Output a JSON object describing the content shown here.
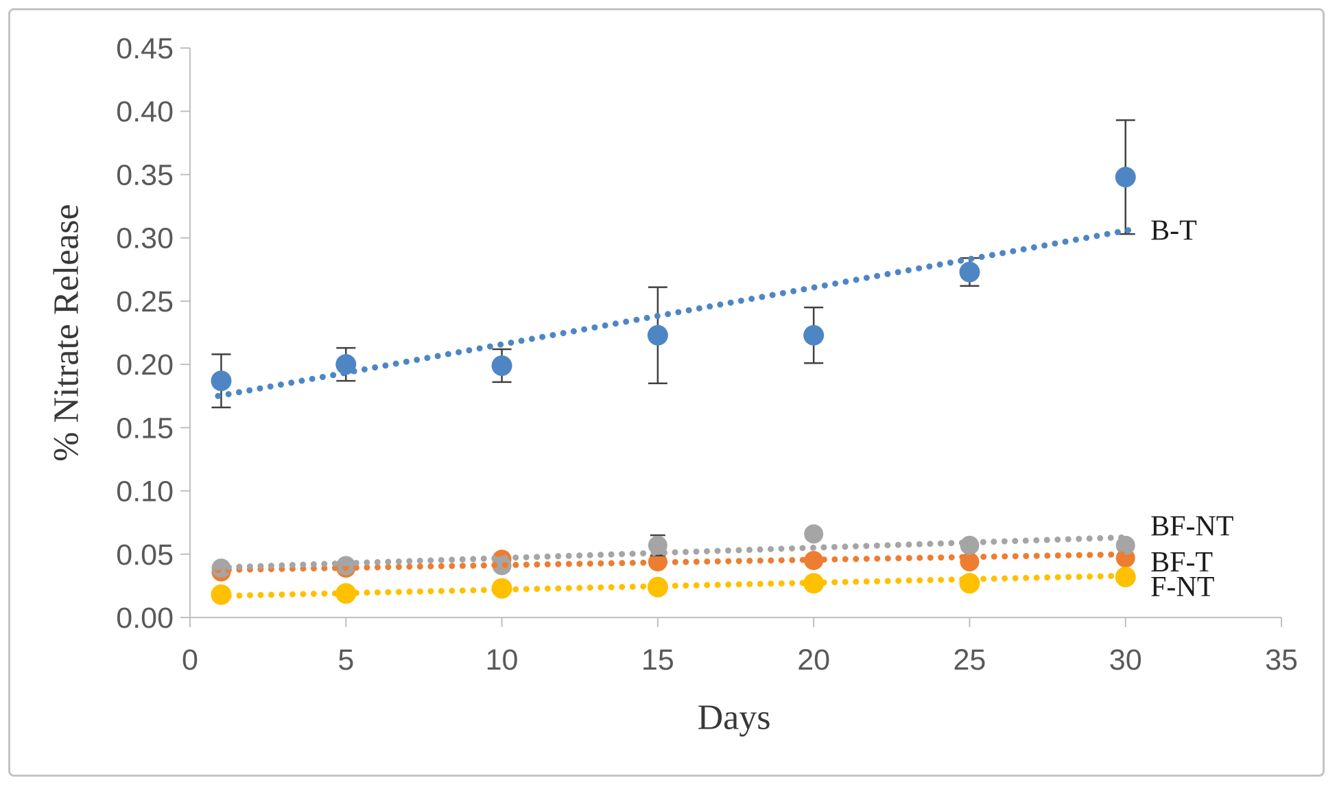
{
  "chart_data": {
    "type": "scatter",
    "title": "",
    "xlabel": "Days",
    "ylabel": "% Nitrate Release",
    "xlim": [
      0,
      35
    ],
    "ylim": [
      0,
      0.45
    ],
    "x_ticks": [
      0,
      5,
      10,
      15,
      20,
      25,
      30,
      35
    ],
    "y_ticks": [
      "0.00",
      "0.05",
      "0.10",
      "0.15",
      "0.20",
      "0.25",
      "0.30",
      "0.35",
      "0.40",
      "0.45"
    ],
    "y_tick_step": 0.05,
    "grid": false,
    "legend_position": "labels-at-line-ends-right",
    "style": {
      "background": "#FFFFFF",
      "border_color": "#C4C4C4",
      "axis_color": "#BFBFBF",
      "tick_label_color": "#595959",
      "axis_title_color": "#383838",
      "series_label_color": "#1B1B1B",
      "error_bar_color": "#404040"
    },
    "series": [
      {
        "name": "BF-T",
        "color": "#ED7D31",
        "marker_radius": 14,
        "err_cap": 11,
        "x": [
          1,
          5,
          10,
          15,
          20,
          25,
          30
        ],
        "y": [
          0.036,
          0.039,
          0.046,
          0.044,
          0.045,
          0.044,
          0.047
        ],
        "err": [
          0,
          0,
          0,
          0,
          0,
          0,
          0
        ],
        "trend": {
          "x1": 0.9,
          "y1": 0.0375,
          "x2": 30.2,
          "y2": 0.05
        },
        "label_pos": {
          "x": 30.8,
          "y": 0.044
        }
      },
      {
        "name": "BF-NT",
        "color": "#A5A5A5",
        "marker_radius": 14,
        "err_cap": 11,
        "x": [
          1,
          5,
          10,
          15,
          20,
          25,
          30
        ],
        "y": [
          0.039,
          0.041,
          0.041,
          0.057,
          0.066,
          0.057,
          0.057
        ],
        "err": [
          0,
          0,
          0,
          0.008,
          0,
          0.004,
          0.003
        ],
        "trend": {
          "x1": 0.9,
          "y1": 0.0395,
          "x2": 30.2,
          "y2": 0.0635
        },
        "label_pos": {
          "x": 30.8,
          "y": 0.0725
        }
      },
      {
        "name": "F-NT",
        "color": "#FFC000",
        "marker_radius": 15,
        "err_cap": 11,
        "x": [
          1,
          5,
          10,
          15,
          20,
          25,
          30
        ],
        "y": [
          0.018,
          0.019,
          0.023,
          0.024,
          0.027,
          0.027,
          0.032
        ],
        "err": [
          0,
          0,
          0,
          0,
          0,
          0,
          0
        ],
        "trend": {
          "x1": 0.9,
          "y1": 0.017,
          "x2": 30.0,
          "y2": 0.033
        },
        "label_pos": {
          "x": 30.8,
          "y": 0.0245
        }
      },
      {
        "name": "B-T",
        "color": "#4E86C4",
        "marker_radius": 15,
        "err_cap": 14,
        "x": [
          1,
          5,
          10,
          15,
          20,
          25,
          30
        ],
        "y": [
          0.187,
          0.2,
          0.199,
          0.223,
          0.223,
          0.273,
          0.348
        ],
        "err": [
          0.021,
          0.013,
          0.013,
          0.038,
          0.022,
          0.011,
          0.045
        ],
        "trend": {
          "x1": 0.9,
          "y1": 0.175,
          "x2": 30.3,
          "y2": 0.307
        },
        "label_pos": {
          "x": 30.8,
          "y": 0.306
        }
      }
    ]
  }
}
